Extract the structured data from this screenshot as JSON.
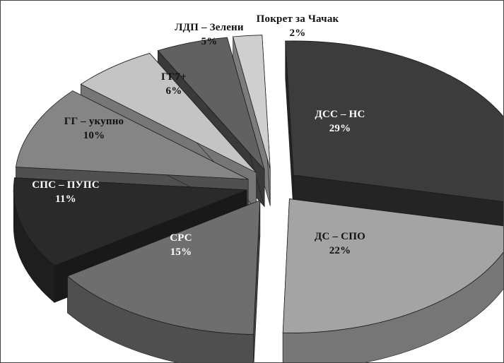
{
  "chart_data": {
    "type": "pie",
    "style": "3d-exploded",
    "title": "",
    "legend": "none",
    "slices": [
      {
        "name": "ДСС – НС",
        "value": 29,
        "label": "29%",
        "color": "#3c3c3c"
      },
      {
        "name": "ДС – СПО",
        "value": 22,
        "label": "22%",
        "color": "#a4a4a4"
      },
      {
        "name": "СРС",
        "value": 15,
        "label": "15%",
        "color": "#6e6e6e"
      },
      {
        "name": "СПС – ПУПС",
        "value": 11,
        "label": "11%",
        "color": "#2a2a2a"
      },
      {
        "name": "ГГ – укупно",
        "value": 10,
        "label": "10%",
        "color": "#858585"
      },
      {
        "name": "ГГ7+",
        "value": 6,
        "label": "6%",
        "color": "#c4c4c4"
      },
      {
        "name": "ЛДП – Зелени",
        "value": 5,
        "label": "5%",
        "color": "#616161"
      },
      {
        "name": "Покрет за Чачак",
        "value": 2,
        "label": "2%",
        "color": "#cfcfcf"
      }
    ]
  }
}
